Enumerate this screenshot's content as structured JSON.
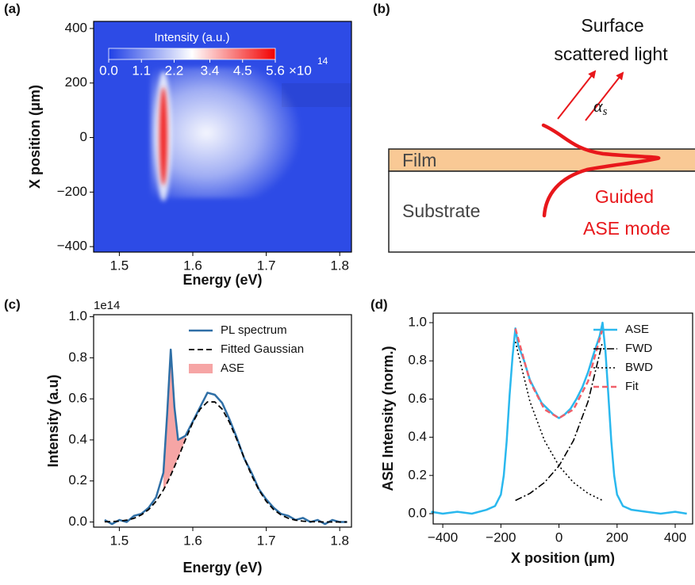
{
  "chart_data": [
    {
      "type": "heatmap",
      "panel_label": "(a)",
      "xlabel": "Energy (eV)",
      "ylabel": "X position (μm)",
      "xlim": [
        1.465,
        1.816
      ],
      "xticks": [
        1.5,
        1.6,
        1.7,
        1.8
      ],
      "ylim": [
        -420,
        426
      ],
      "yticks": [
        {
          "value": -400,
          "label": "−400"
        },
        {
          "value": -200,
          "label": "−200"
        },
        0,
        200,
        400
      ],
      "colorbar": {
        "label": "Intensity (a.u.)",
        "lim": [
          0,
          5.6
        ],
        "ticks": [
          {
            "value": 0,
            "label": "0.0"
          },
          1.1,
          2.2,
          3.4,
          4.5,
          5.6
        ],
        "offset_label": "×10",
        "offset_exponent": "14",
        "colors": [
          "#1f3fe6",
          "#ffffff",
          "#f20000"
        ]
      }
    },
    {
      "type": "line",
      "panel_label": "(c)",
      "xlabel": "Energy (eV)",
      "ylabel": "Intensity (a.u)",
      "offset_label": "1e14",
      "xlim": [
        1.465,
        1.816
      ],
      "xticks": [
        1.5,
        1.6,
        1.7,
        1.8
      ],
      "ylim": [
        -0.025,
        1.01
      ],
      "yticks": [
        {
          "value": 0,
          "label": "0.0"
        },
        0.2,
        0.4,
        0.6,
        0.8,
        {
          "value": 1,
          "label": "1.0"
        }
      ],
      "x": [
        1.48,
        1.49,
        1.5,
        1.51,
        1.52,
        1.53,
        1.54,
        1.55,
        1.56,
        1.565,
        1.57,
        1.575,
        1.58,
        1.59,
        1.6,
        1.61,
        1.62,
        1.63,
        1.64,
        1.65,
        1.66,
        1.67,
        1.68,
        1.69,
        1.7,
        1.71,
        1.72,
        1.73,
        1.74,
        1.75,
        1.76,
        1.77,
        1.78,
        1.79,
        1.8,
        1.81
      ],
      "series": [
        {
          "name": "PL spectrum",
          "color": "#2f6fa6",
          "dash": "solid",
          "width": 2.5,
          "values": [
            0.01,
            -0.01,
            0.01,
            0.0,
            0.03,
            0.04,
            0.07,
            0.12,
            0.24,
            0.52,
            0.84,
            0.56,
            0.4,
            0.42,
            0.49,
            0.56,
            0.63,
            0.62,
            0.58,
            0.5,
            0.41,
            0.31,
            0.24,
            0.16,
            0.11,
            0.07,
            0.04,
            0.03,
            0.01,
            0.02,
            0.0,
            0.01,
            -0.01,
            0.01,
            0.0,
            0.0
          ]
        },
        {
          "name": "Fitted Gaussian",
          "color": "#000000",
          "dash": "dashed",
          "width": 1.8,
          "values": [
            0.001,
            0.002,
            0.004,
            0.009,
            0.018,
            0.035,
            0.061,
            0.101,
            0.156,
            0.19,
            0.228,
            0.269,
            0.312,
            0.401,
            0.485,
            0.55,
            0.585,
            0.585,
            0.55,
            0.485,
            0.401,
            0.312,
            0.228,
            0.156,
            0.101,
            0.061,
            0.035,
            0.018,
            0.009,
            0.004,
            0.002,
            0.001,
            0.0,
            0.0,
            0.0,
            0.0
          ]
        },
        {
          "name": "ASE",
          "color": "#f6a5a5",
          "area": true,
          "fill_to_series": 1,
          "values": [
            null,
            null,
            null,
            null,
            null,
            null,
            null,
            null,
            0.24,
            0.52,
            0.84,
            0.56,
            0.4,
            0.42,
            null,
            null,
            null,
            null,
            null,
            null,
            null,
            null,
            null,
            null,
            null,
            null,
            null,
            null,
            null,
            null,
            null,
            null,
            null,
            null,
            null,
            null
          ]
        }
      ]
    },
    {
      "type": "line",
      "panel_label": "(d)",
      "xlabel": "X position (μm)",
      "ylabel": "ASE Intensity (norm.)",
      "xlim": [
        -433,
        460
      ],
      "xticks": [
        {
          "value": -400,
          "label": "−400"
        },
        {
          "value": -200,
          "label": "−200"
        },
        0,
        200,
        400
      ],
      "ylim": [
        -0.054,
        1.05
      ],
      "yticks": [
        {
          "value": 0,
          "label": "0.0"
        },
        0.2,
        0.4,
        0.6,
        0.8,
        {
          "value": 1,
          "label": "1.0"
        }
      ],
      "series": [
        {
          "name": "ASE",
          "color": "#2ab8ee",
          "dash": "solid",
          "width": 2.5,
          "x": [
            -440,
            -400,
            -350,
            -300,
            -250,
            -220,
            -200,
            -190,
            -180,
            -170,
            -160,
            -150,
            -140,
            -120,
            -100,
            -80,
            -60,
            -40,
            -20,
            0,
            20,
            40,
            60,
            80,
            100,
            120,
            140,
            150,
            160,
            170,
            180,
            190,
            200,
            220,
            250,
            300,
            350,
            400,
            440
          ],
          "values": [
            0.01,
            0.0,
            0.01,
            0.0,
            0.02,
            0.04,
            0.1,
            0.2,
            0.38,
            0.62,
            0.82,
            0.97,
            0.88,
            0.8,
            0.7,
            0.64,
            0.58,
            0.55,
            0.52,
            0.5,
            0.52,
            0.55,
            0.6,
            0.66,
            0.74,
            0.84,
            0.93,
            1.0,
            0.85,
            0.62,
            0.38,
            0.2,
            0.1,
            0.04,
            0.02,
            0.01,
            0.0,
            0.01,
            0.0
          ]
        },
        {
          "name": "FWD",
          "color": "#000000",
          "dash": "dashdot",
          "width": 1.6,
          "x": [
            -150,
            -100,
            -50,
            0,
            50,
            100,
            150
          ],
          "values": [
            0.069,
            0.106,
            0.163,
            0.25,
            0.383,
            0.587,
            0.9
          ]
        },
        {
          "name": "BWD",
          "color": "#000000",
          "dash": "dotted",
          "width": 1.6,
          "x": [
            -150,
            -100,
            -50,
            0,
            50,
            100,
            150
          ],
          "values": [
            0.9,
            0.587,
            0.383,
            0.25,
            0.163,
            0.106,
            0.069
          ]
        },
        {
          "name": "Fit",
          "color": "#f0606a",
          "dash": "dashed",
          "width": 2.5,
          "x": [
            -150,
            -100,
            -50,
            0,
            50,
            100,
            150
          ],
          "values": [
            0.969,
            0.693,
            0.546,
            0.5,
            0.546,
            0.693,
            0.969
          ]
        }
      ]
    }
  ],
  "diagram": {
    "panel_label": "(b)",
    "title_lines": [
      "Surface",
      "scattered light"
    ],
    "angle_symbol": "α",
    "angle_subscript": "s",
    "film": "Film",
    "substrate": "Substrate",
    "mode_lines": [
      "Guided",
      "ASE mode"
    ]
  }
}
